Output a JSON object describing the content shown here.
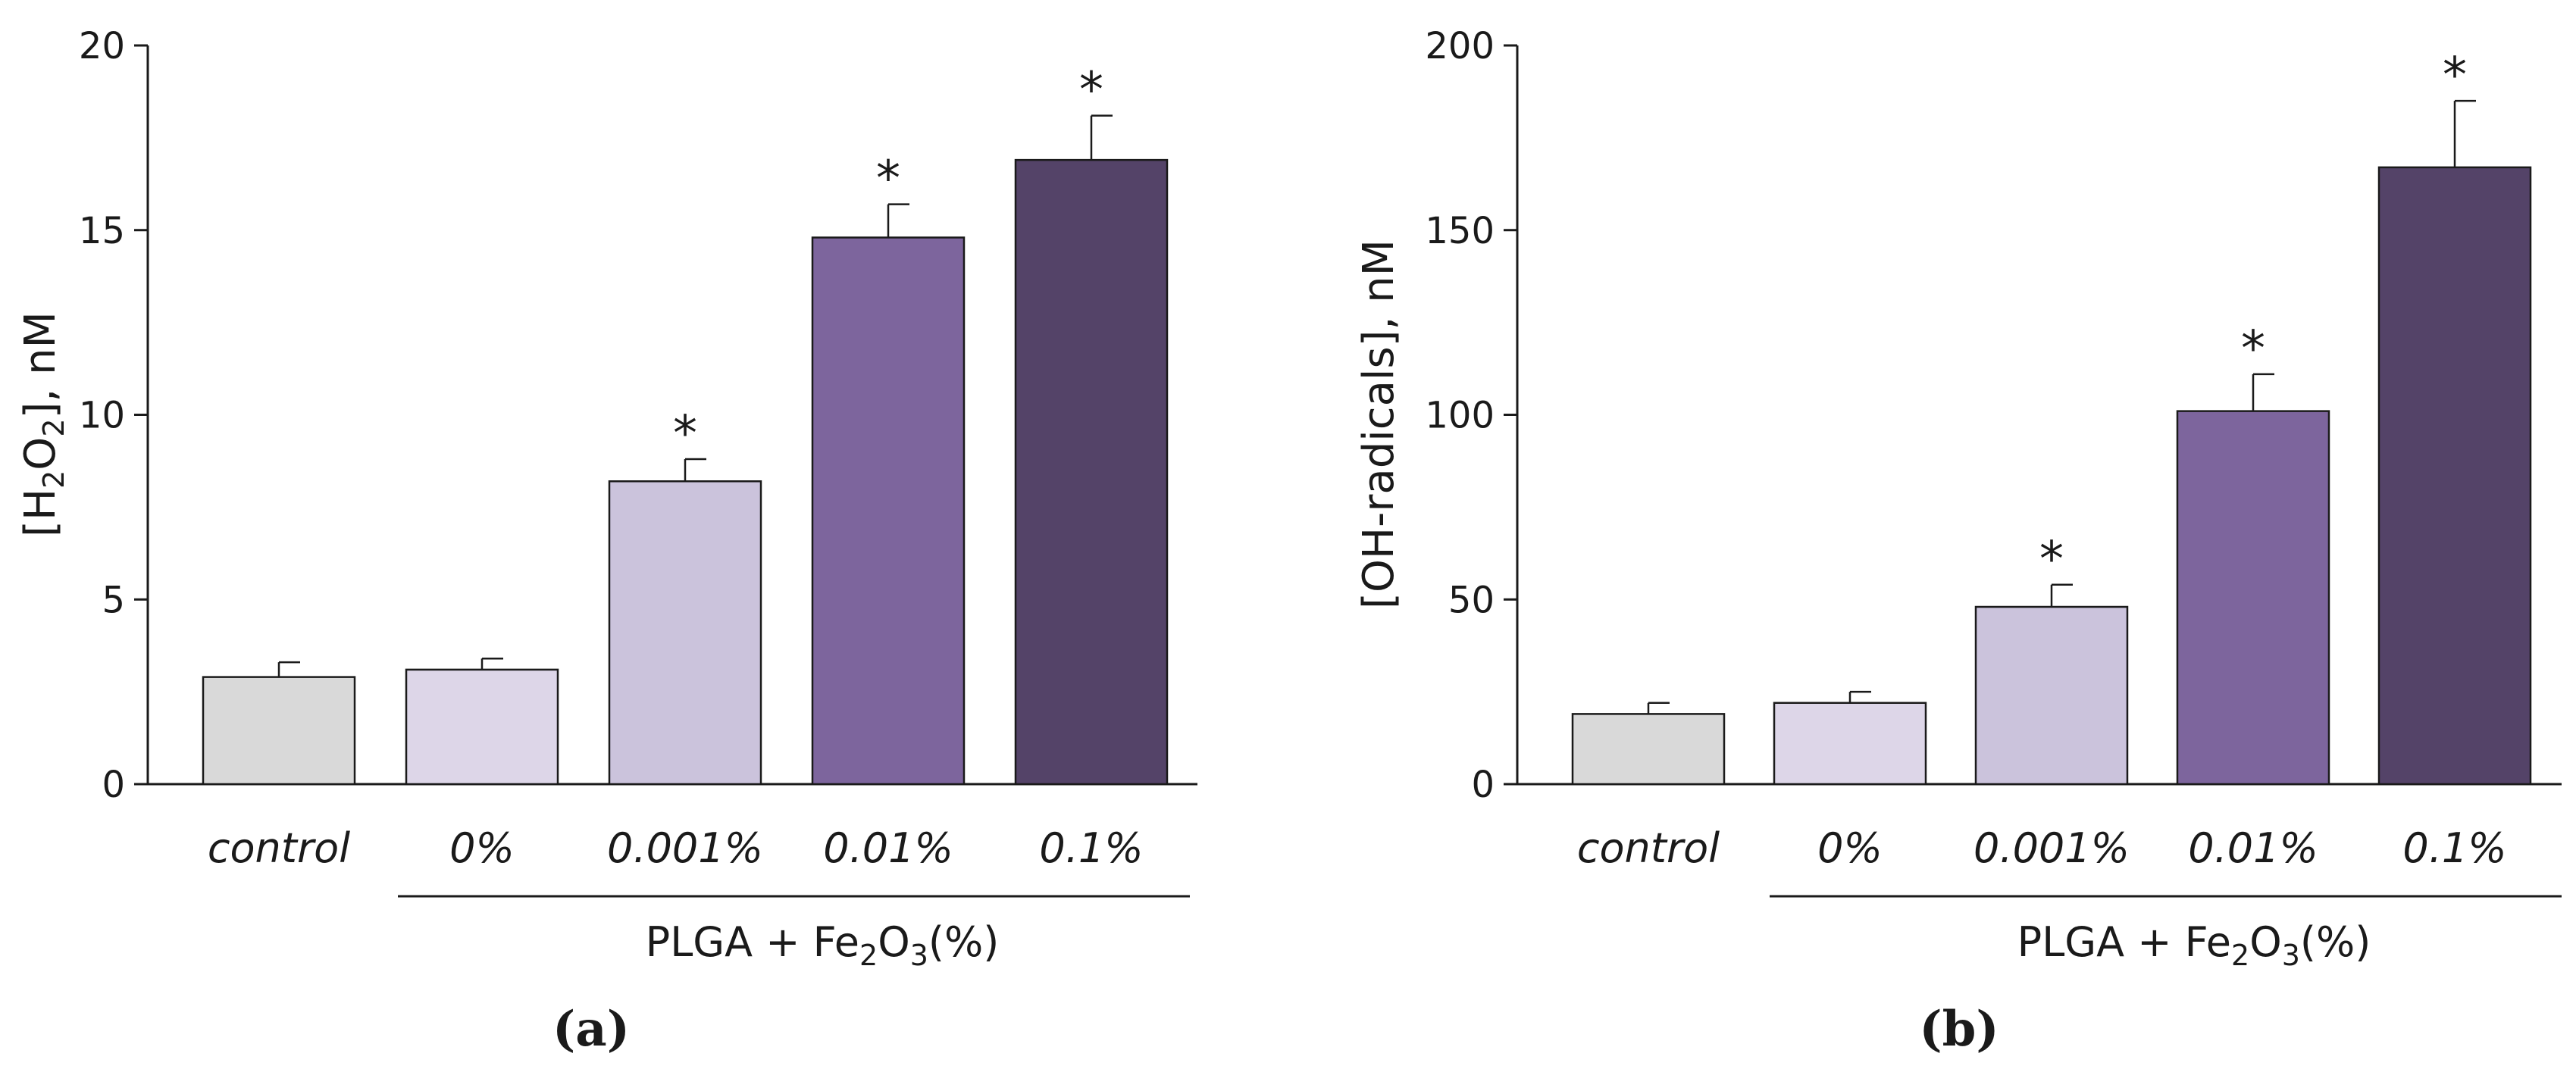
{
  "chart_data": [
    {
      "type": "bar",
      "panel_label": "(a)",
      "ylabel_prefix": "[H",
      "ylabel_sub1": "2",
      "ylabel_mid": "O",
      "ylabel_sub2": "2",
      "ylabel_suffix": "], nM",
      "ylim": [
        0,
        20
      ],
      "yticks": [
        0,
        5,
        10,
        15,
        20
      ],
      "categories": [
        "control",
        "0%",
        "0.001%",
        "0.01%",
        "0.1%"
      ],
      "values": [
        2.9,
        3.1,
        8.2,
        14.8,
        16.9
      ],
      "errors": [
        0.4,
        0.3,
        0.6,
        0.9,
        1.2
      ],
      "significant": [
        false,
        false,
        true,
        true,
        true
      ],
      "star": "*",
      "colors": [
        "#d9d9d9",
        "#ddd6e8",
        "#cbc3dc",
        "#7d659d",
        "#544368"
      ],
      "group_label_prefix": "PLGA + Fe",
      "group_label_sub1": "2",
      "group_label_mid": "O",
      "group_label_sub2": "3",
      "group_label_suffix": "(%)"
    },
    {
      "type": "bar",
      "panel_label": "(b)",
      "ylabel": "[OH-radicals], nM",
      "ylim": [
        0,
        200
      ],
      "yticks": [
        0,
        50,
        100,
        150,
        200
      ],
      "categories": [
        "control",
        "0%",
        "0.001%",
        "0.01%",
        "0.1%"
      ],
      "values": [
        19,
        22,
        48,
        101,
        167
      ],
      "errors": [
        3,
        3,
        6,
        10,
        18
      ],
      "significant": [
        false,
        false,
        true,
        true,
        true
      ],
      "star": "*",
      "colors": [
        "#d9d9d9",
        "#ddd6e8",
        "#cbc3dc",
        "#7d659d",
        "#544368"
      ],
      "group_label_prefix": "PLGA + Fe",
      "group_label_sub1": "2",
      "group_label_mid": "O",
      "group_label_sub2": "3",
      "group_label_suffix": "(%)"
    }
  ]
}
